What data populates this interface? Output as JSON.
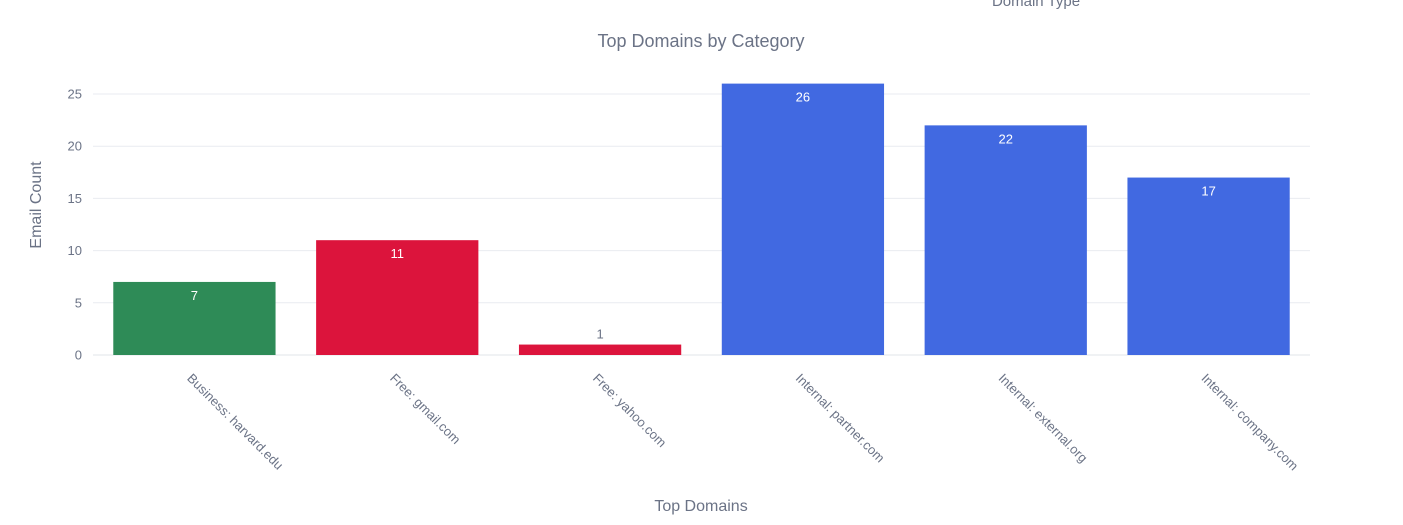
{
  "chart_data": {
    "type": "bar",
    "title": "Top Domains by Category",
    "xlabel": "Top Domains",
    "ylabel": "Email Count",
    "legend_title": "Domain Type",
    "categories": [
      "Business: harvard.edu",
      "Free: gmail.com",
      "Free: yahoo.com",
      "Internal: partner.com",
      "Internal: external.org",
      "Internal: company.com"
    ],
    "values": [
      7,
      11,
      1,
      26,
      22,
      17
    ],
    "bar_colors": [
      "#2e8b57",
      "#dc143c",
      "#dc143c",
      "#4169e1",
      "#4169e1",
      "#4169e1"
    ],
    "ylim": [
      0,
      27.4
    ],
    "yticks": [
      0,
      5,
      10,
      15,
      20,
      25
    ],
    "grid": true
  }
}
